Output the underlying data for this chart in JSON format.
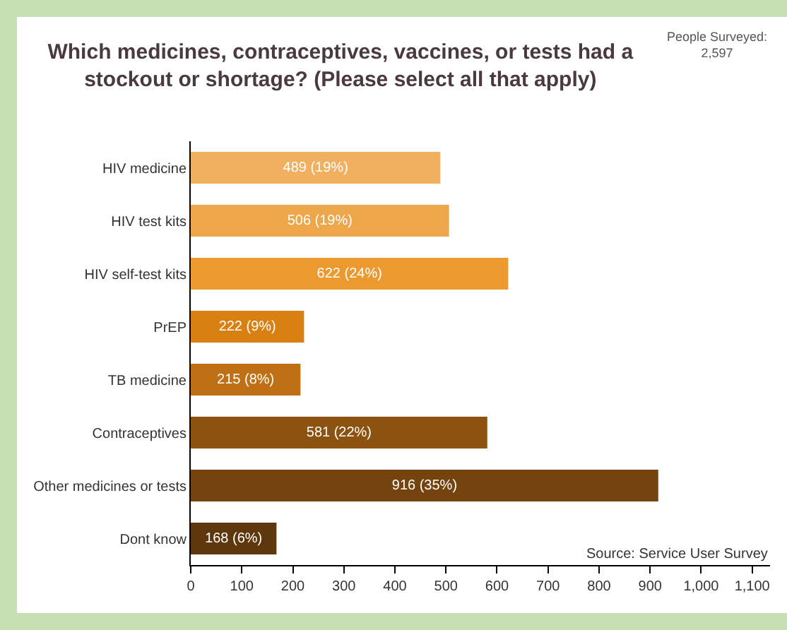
{
  "chart_data": {
    "type": "bar",
    "orientation": "horizontal",
    "title": "Which medicines, contraceptives, vaccines, or tests had a stockout or shortage? (Please select all that apply)",
    "categories": [
      "HIV medicine",
      "HIV test kits",
      "HIV self-test kits",
      "PrEP",
      "TB medicine",
      "Contraceptives",
      "Other medicines or tests",
      "Dont know"
    ],
    "values": [
      489,
      506,
      622,
      222,
      215,
      581,
      916,
      168
    ],
    "colors": [
      "#f0b060",
      "#eea64a",
      "#ec9a30",
      "#d98012",
      "#c07014",
      "#8c5210",
      "#75440e",
      "#5e370c"
    ],
    "value_labels": [
      "489 (19%)",
      "506 (19%)",
      "622 (24%)",
      "222 (9%)",
      "215 (8%)",
      "581 (22%)",
      "916 (35%)",
      "168 (6%)"
    ],
    "xlim": [
      0,
      1135
    ],
    "xticks": [
      0,
      100,
      200,
      300,
      400,
      500,
      600,
      700,
      800,
      900,
      {
        "value": 1000,
        "label": "1,000"
      },
      {
        "value": 1100,
        "label": "1,100"
      }
    ],
    "annotations": [
      "People Surveyed:\n2,597",
      "Source: Service User Survey"
    ]
  }
}
